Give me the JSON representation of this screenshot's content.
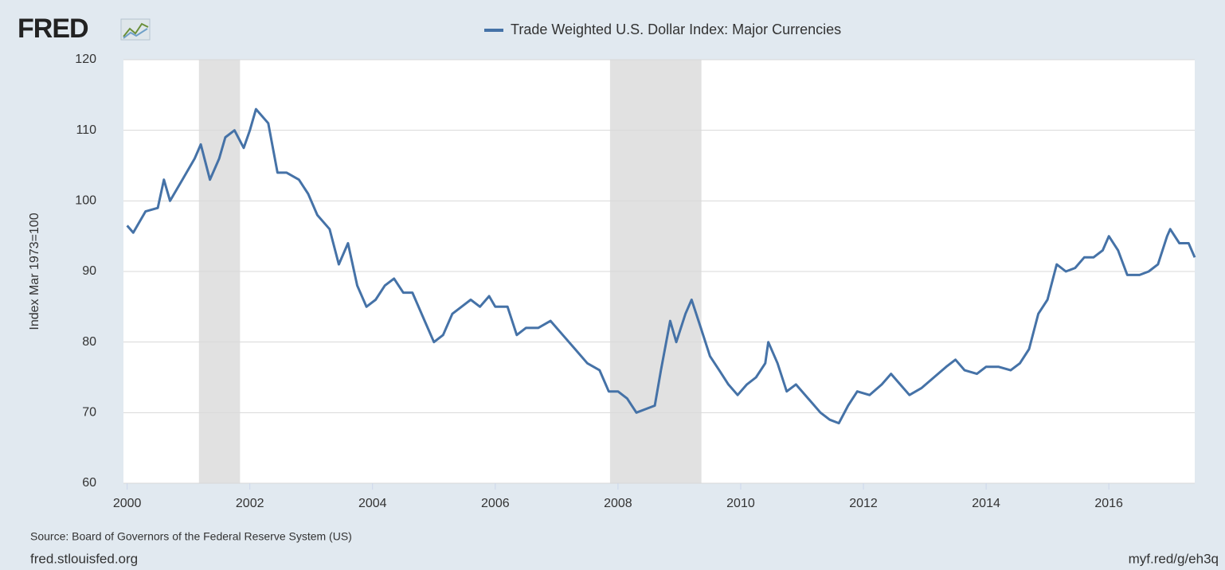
{
  "logo": "FRED",
  "chart_data": {
    "type": "line",
    "title": "Trade Weighted U.S. Dollar Index: Major Currencies",
    "y_label": "Index Mar 1973=100",
    "source": "Source: Board of Governors of the Federal Reserve System (US)",
    "site": "fred.stlouisfed.org",
    "short_link": "myf.red/g/eh3q",
    "xlim": [
      1999.94,
      2017.4
    ],
    "ylim": [
      60,
      120
    ],
    "xticks": [
      2000,
      2002,
      2004,
      2006,
      2008,
      2010,
      2012,
      2014,
      2016
    ],
    "yticks": [
      60,
      70,
      80,
      90,
      100,
      110,
      120
    ],
    "grid": true,
    "recessions": [
      [
        2001.17,
        2001.84
      ],
      [
        2007.87,
        2009.36
      ]
    ],
    "recession_color": "#e1e1e1",
    "series": [
      {
        "name": "Trade Weighted U.S. Dollar Index: Major Currencies",
        "color": "#4572a7",
        "x": [
          2000.0,
          2000.1,
          2000.3,
          2000.5,
          2000.6,
          2000.7,
          2000.9,
          2001.1,
          2001.2,
          2001.35,
          2001.5,
          2001.6,
          2001.75,
          2001.9,
          2002.0,
          2002.1,
          2002.3,
          2002.45,
          2002.6,
          2002.8,
          2002.95,
          2003.1,
          2003.3,
          2003.45,
          2003.6,
          2003.75,
          2003.9,
          2004.05,
          2004.2,
          2004.35,
          2004.5,
          2004.65,
          2004.85,
          2005.0,
          2005.15,
          2005.3,
          2005.45,
          2005.6,
          2005.75,
          2005.9,
          2006.0,
          2006.2,
          2006.35,
          2006.5,
          2006.7,
          2006.9,
          2007.1,
          2007.3,
          2007.5,
          2007.7,
          2007.85,
          2008.0,
          2008.15,
          2008.3,
          2008.45,
          2008.6,
          2008.7,
          2008.85,
          2008.95,
          2009.1,
          2009.2,
          2009.35,
          2009.5,
          2009.65,
          2009.8,
          2009.95,
          2010.1,
          2010.25,
          2010.4,
          2010.45,
          2010.6,
          2010.75,
          2010.9,
          2011.1,
          2011.3,
          2011.45,
          2011.6,
          2011.75,
          2011.9,
          2012.1,
          2012.3,
          2012.45,
          2012.6,
          2012.75,
          2012.95,
          2013.15,
          2013.35,
          2013.5,
          2013.65,
          2013.85,
          2014.0,
          2014.2,
          2014.4,
          2014.55,
          2014.7,
          2014.85,
          2015.0,
          2015.15,
          2015.3,
          2015.45,
          2015.6,
          2015.75,
          2015.9,
          2016.0,
          2016.15,
          2016.3,
          2016.5,
          2016.65,
          2016.8,
          2016.95,
          2017.0,
          2017.15,
          2017.3,
          2017.4
        ],
        "values": [
          96.5,
          95.5,
          98.5,
          99,
          103,
          100,
          103,
          106,
          108,
          103,
          106,
          109,
          110,
          107.5,
          110,
          113,
          111,
          104,
          104,
          103,
          101,
          98,
          96,
          91,
          94,
          88,
          85,
          86,
          88,
          89,
          87,
          87,
          83,
          80,
          81,
          84,
          85,
          86,
          85,
          86.5,
          85,
          85,
          81,
          82,
          82,
          83,
          81,
          79,
          77,
          76,
          73,
          73,
          72,
          70,
          70.5,
          71,
          76,
          83,
          80,
          84,
          86,
          82,
          78,
          76,
          74,
          72.5,
          74,
          75,
          77,
          80,
          77,
          73,
          74,
          72,
          70,
          69,
          68.5,
          71,
          73,
          72.5,
          74,
          75.5,
          74,
          72.5,
          73.5,
          75,
          76.5,
          77.5,
          76,
          75.5,
          76.5,
          76.5,
          76,
          77,
          79,
          84,
          86,
          91,
          90,
          90.5,
          92,
          92,
          93,
          95,
          93,
          89.5,
          89.5,
          90,
          91,
          95,
          96,
          94,
          94,
          92
        ]
      }
    ]
  }
}
